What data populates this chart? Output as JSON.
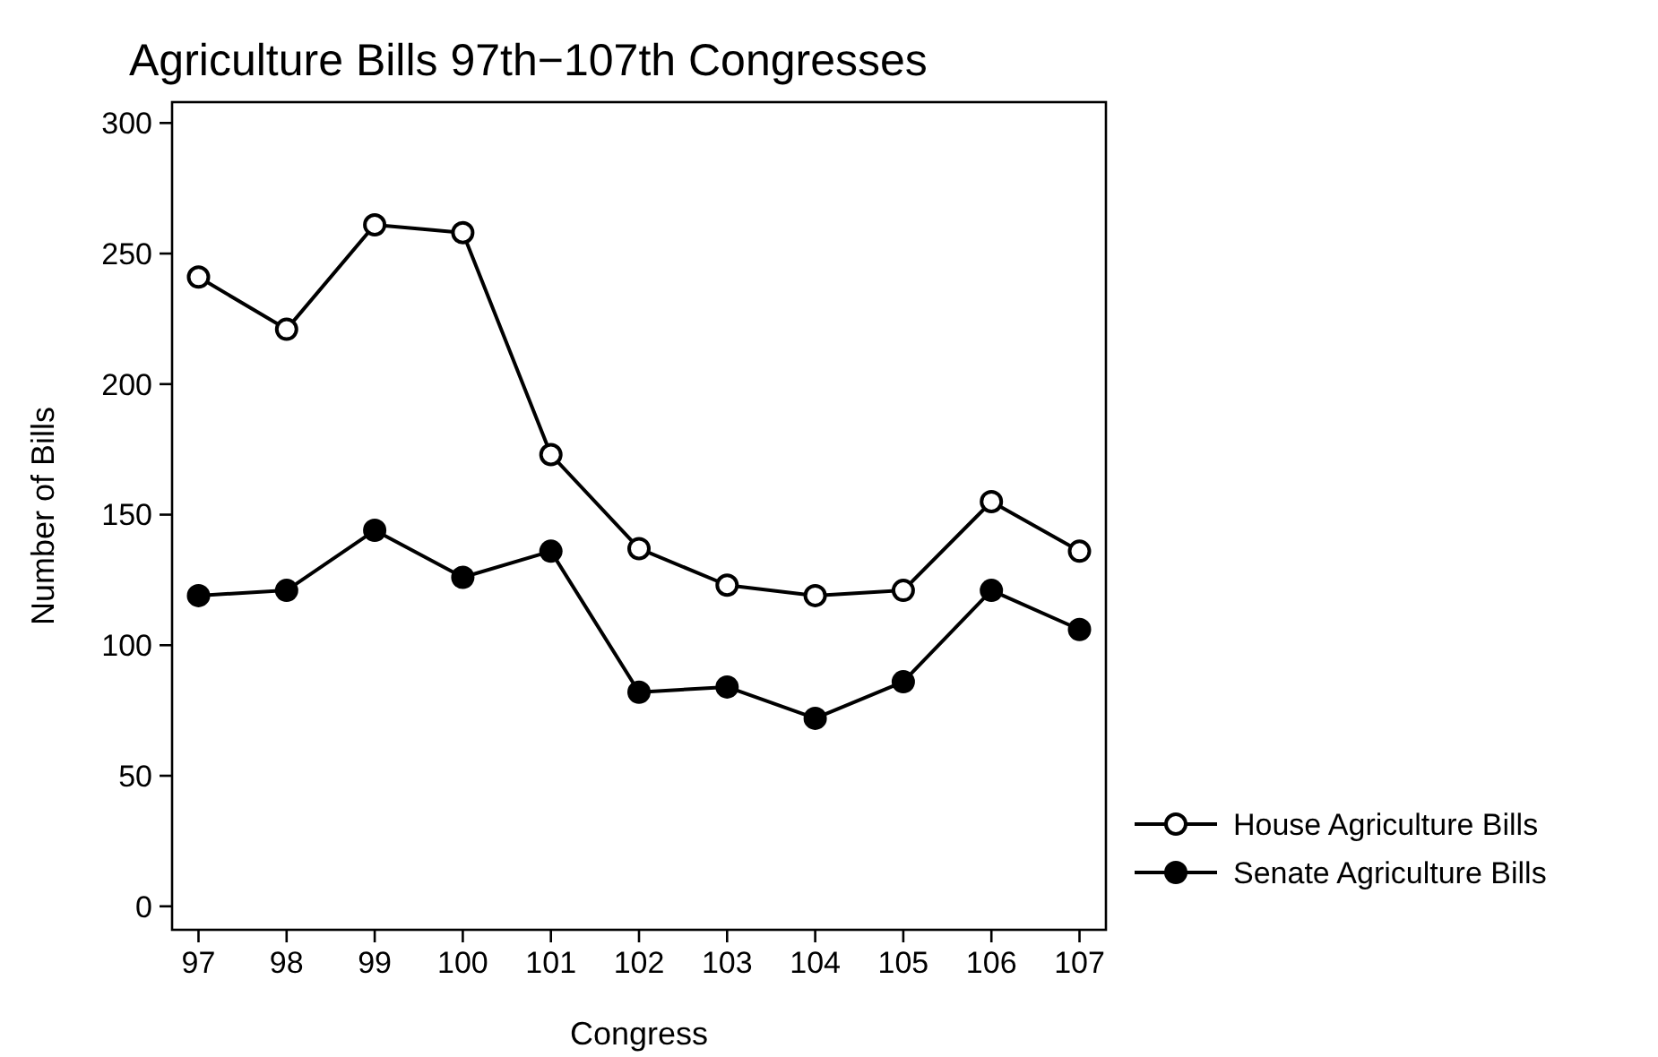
{
  "chart_data": {
    "type": "line",
    "title": "Agriculture Bills 97th−107th Congresses",
    "xlabel": "Congress",
    "ylabel": "Number of Bills",
    "x": [
      97,
      98,
      99,
      100,
      101,
      102,
      103,
      104,
      105,
      106,
      107
    ],
    "series": [
      {
        "name": "House Agriculture Bills",
        "color": "#000000",
        "marker": "circle-open",
        "values": [
          241,
          221,
          261,
          258,
          173,
          137,
          123,
          119,
          121,
          155,
          136
        ]
      },
      {
        "name": "Senate Agriculture Bills",
        "color": "#000000",
        "marker": "circle",
        "values": [
          119,
          121,
          144,
          126,
          136,
          82,
          84,
          72,
          86,
          121,
          106
        ]
      }
    ],
    "xlim": [
      96.7,
      107.3
    ],
    "xticks": [
      97,
      98,
      99,
      100,
      101,
      102,
      103,
      104,
      105,
      106,
      107
    ],
    "ylim": [
      -9,
      308
    ],
    "yticks": [
      0,
      50,
      100,
      150,
      200,
      250,
      300
    ],
    "grid": false,
    "legend": "right",
    "line_style": "solid"
  }
}
